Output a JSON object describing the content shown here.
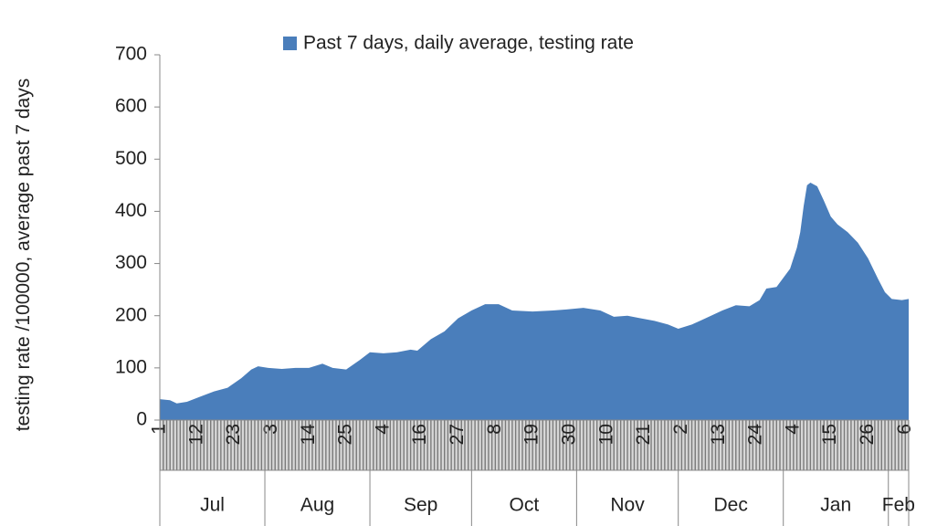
{
  "chart_data": {
    "type": "area",
    "ylabel": "testing rate /100000, average past 7 days",
    "ylim": [
      0,
      700
    ],
    "yticks": [
      0,
      100,
      200,
      300,
      400,
      500,
      600,
      700
    ],
    "xlim": [
      0,
      221
    ],
    "xticks": [
      {
        "value": 0,
        "label": "1"
      },
      {
        "value": 11,
        "label": "12"
      },
      {
        "value": 22,
        "label": "23"
      },
      {
        "value": 33,
        "label": "3"
      },
      {
        "value": 44,
        "label": "14"
      },
      {
        "value": 55,
        "label": "25"
      },
      {
        "value": 66,
        "label": "4"
      },
      {
        "value": 77,
        "label": "16"
      },
      {
        "value": 88,
        "label": "27"
      },
      {
        "value": 99,
        "label": "8"
      },
      {
        "value": 110,
        "label": "19"
      },
      {
        "value": 121,
        "label": "30"
      },
      {
        "value": 132,
        "label": "10"
      },
      {
        "value": 143,
        "label": "21"
      },
      {
        "value": 154,
        "label": "2"
      },
      {
        "value": 165,
        "label": "13"
      },
      {
        "value": 176,
        "label": "24"
      },
      {
        "value": 187,
        "label": "4"
      },
      {
        "value": 198,
        "label": "15"
      },
      {
        "value": 209,
        "label": "26"
      },
      {
        "value": 220,
        "label": "6"
      }
    ],
    "month_groups": [
      {
        "label": "Jul",
        "start": 0,
        "end": 31
      },
      {
        "label": "Aug",
        "start": 31,
        "end": 62
      },
      {
        "label": "Sep",
        "start": 62,
        "end": 92
      },
      {
        "label": "Oct",
        "start": 92,
        "end": 123
      },
      {
        "label": "Nov",
        "start": 123,
        "end": 153
      },
      {
        "label": "Dec",
        "start": 153,
        "end": 184
      },
      {
        "label": "Jan",
        "start": 184,
        "end": 215
      },
      {
        "label": "Feb",
        "start": 215,
        "end": 221
      }
    ],
    "x": [
      0,
      3,
      5,
      8,
      12,
      16,
      20,
      24,
      27,
      29,
      32,
      36,
      40,
      44,
      48,
      51,
      55,
      59,
      62,
      66,
      70,
      74,
      76,
      80,
      84,
      88,
      92,
      96,
      100,
      104,
      110,
      116,
      120,
      125,
      130,
      134,
      138,
      142,
      146,
      150,
      153,
      157,
      161,
      166,
      170,
      174,
      177,
      179,
      182,
      186,
      188,
      189,
      190,
      191,
      192,
      194,
      196,
      198,
      200,
      203,
      206,
      209,
      212,
      214,
      216,
      219,
      221
    ],
    "series": [
      {
        "name": "Past 7 days, daily average, testing rate",
        "color": "#4a7ebb",
        "values": [
          40,
          38,
          32,
          35,
          45,
          55,
          62,
          80,
          97,
          103,
          100,
          98,
          100,
          100,
          108,
          100,
          97,
          115,
          130,
          128,
          130,
          135,
          133,
          155,
          170,
          195,
          210,
          222,
          222,
          210,
          208,
          210,
          212,
          215,
          210,
          198,
          200,
          195,
          190,
          183,
          175,
          183,
          195,
          210,
          220,
          218,
          230,
          252,
          255,
          290,
          330,
          360,
          410,
          450,
          455,
          448,
          420,
          390,
          375,
          360,
          340,
          310,
          270,
          245,
          232,
          230,
          232
        ]
      }
    ],
    "legend": "top"
  }
}
